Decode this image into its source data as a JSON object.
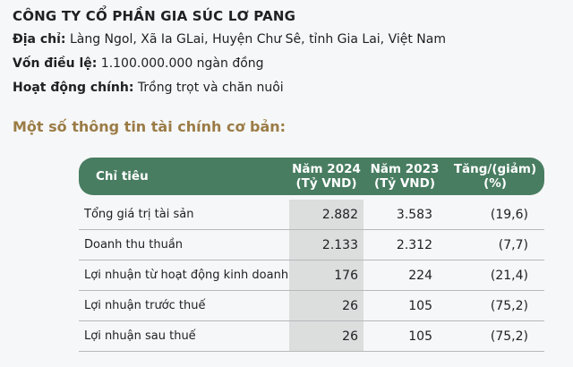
{
  "company": {
    "name": "CÔNG TY CỔ PHẦN GIA SÚC LƠ PANG",
    "details": [
      {
        "label": "Địa chỉ:",
        "value": "Làng Ngol, Xã Ia GLai, Huyện Chư Sê, tỉnh Gia Lai, Việt Nam"
      },
      {
        "label": "Vốn điều lệ:",
        "value": "1.100.000.000 ngàn đồng"
      },
      {
        "label": "Hoạt động chính:",
        "value": "Trồng trọt và chăn nuôi"
      }
    ]
  },
  "section_heading": "Một số thông tin tài chính cơ bản:",
  "financial_table": {
    "columns": [
      {
        "line1": "Chỉ tiêu",
        "line2": ""
      },
      {
        "line1": "Năm 2024",
        "line2": "(Tỷ VND)"
      },
      {
        "line1": "Năm 2023",
        "line2": "(Tỷ VND)"
      },
      {
        "line1": "Tăng/(giảm)",
        "line2": "(%)"
      }
    ],
    "rows": [
      {
        "label": "Tổng giá trị tài sản",
        "y2024": "2.882",
        "y2023": "3.583",
        "change": "(19,6)"
      },
      {
        "label": "Doanh thu thuần",
        "y2024": "2.133",
        "y2023": "2.312",
        "change": "(7,7)"
      },
      {
        "label": "Lợi nhuận từ hoạt động kinh doanh",
        "y2024": "176",
        "y2023": "224",
        "change": "(21,4)"
      },
      {
        "label": "Lợi nhuận trước thuế",
        "y2024": "26",
        "y2023": "105",
        "change": "(75,2)"
      },
      {
        "label": "Lợi nhuận sau thuế",
        "y2024": "26",
        "y2023": "105",
        "change": "(75,2)"
      }
    ]
  },
  "colors": {
    "header_green": "#487d61",
    "heading_gold": "#9b7c46",
    "highlight_gray": "#dcdddd",
    "divider": "#b6b9ba",
    "text": "#202124",
    "background": "#f6f7f8"
  }
}
